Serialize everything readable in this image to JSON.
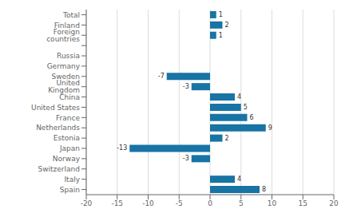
{
  "chart_data": {
    "type": "bar",
    "orientation": "horizontal",
    "categories": [
      "Total",
      "Finland",
      "Foreign countries",
      null,
      "Russia",
      "Germany",
      "Sweden",
      "United Kingdom",
      "China",
      "United States",
      "France",
      "Netherlands",
      "Estonia",
      "Japan",
      "Norway",
      "Switzerland",
      "Italy",
      "Spain"
    ],
    "values": [
      1,
      2,
      1,
      null,
      0,
      0,
      -7,
      -3,
      4,
      5,
      6,
      9,
      2,
      -13,
      -3,
      0,
      4,
      8
    ],
    "color": "#1874a4",
    "xlim": [
      -20,
      20
    ],
    "xticks": [
      -20,
      -15,
      -10,
      -5,
      0,
      5,
      10,
      15,
      20
    ],
    "grid": true,
    "data_labels": true
  }
}
